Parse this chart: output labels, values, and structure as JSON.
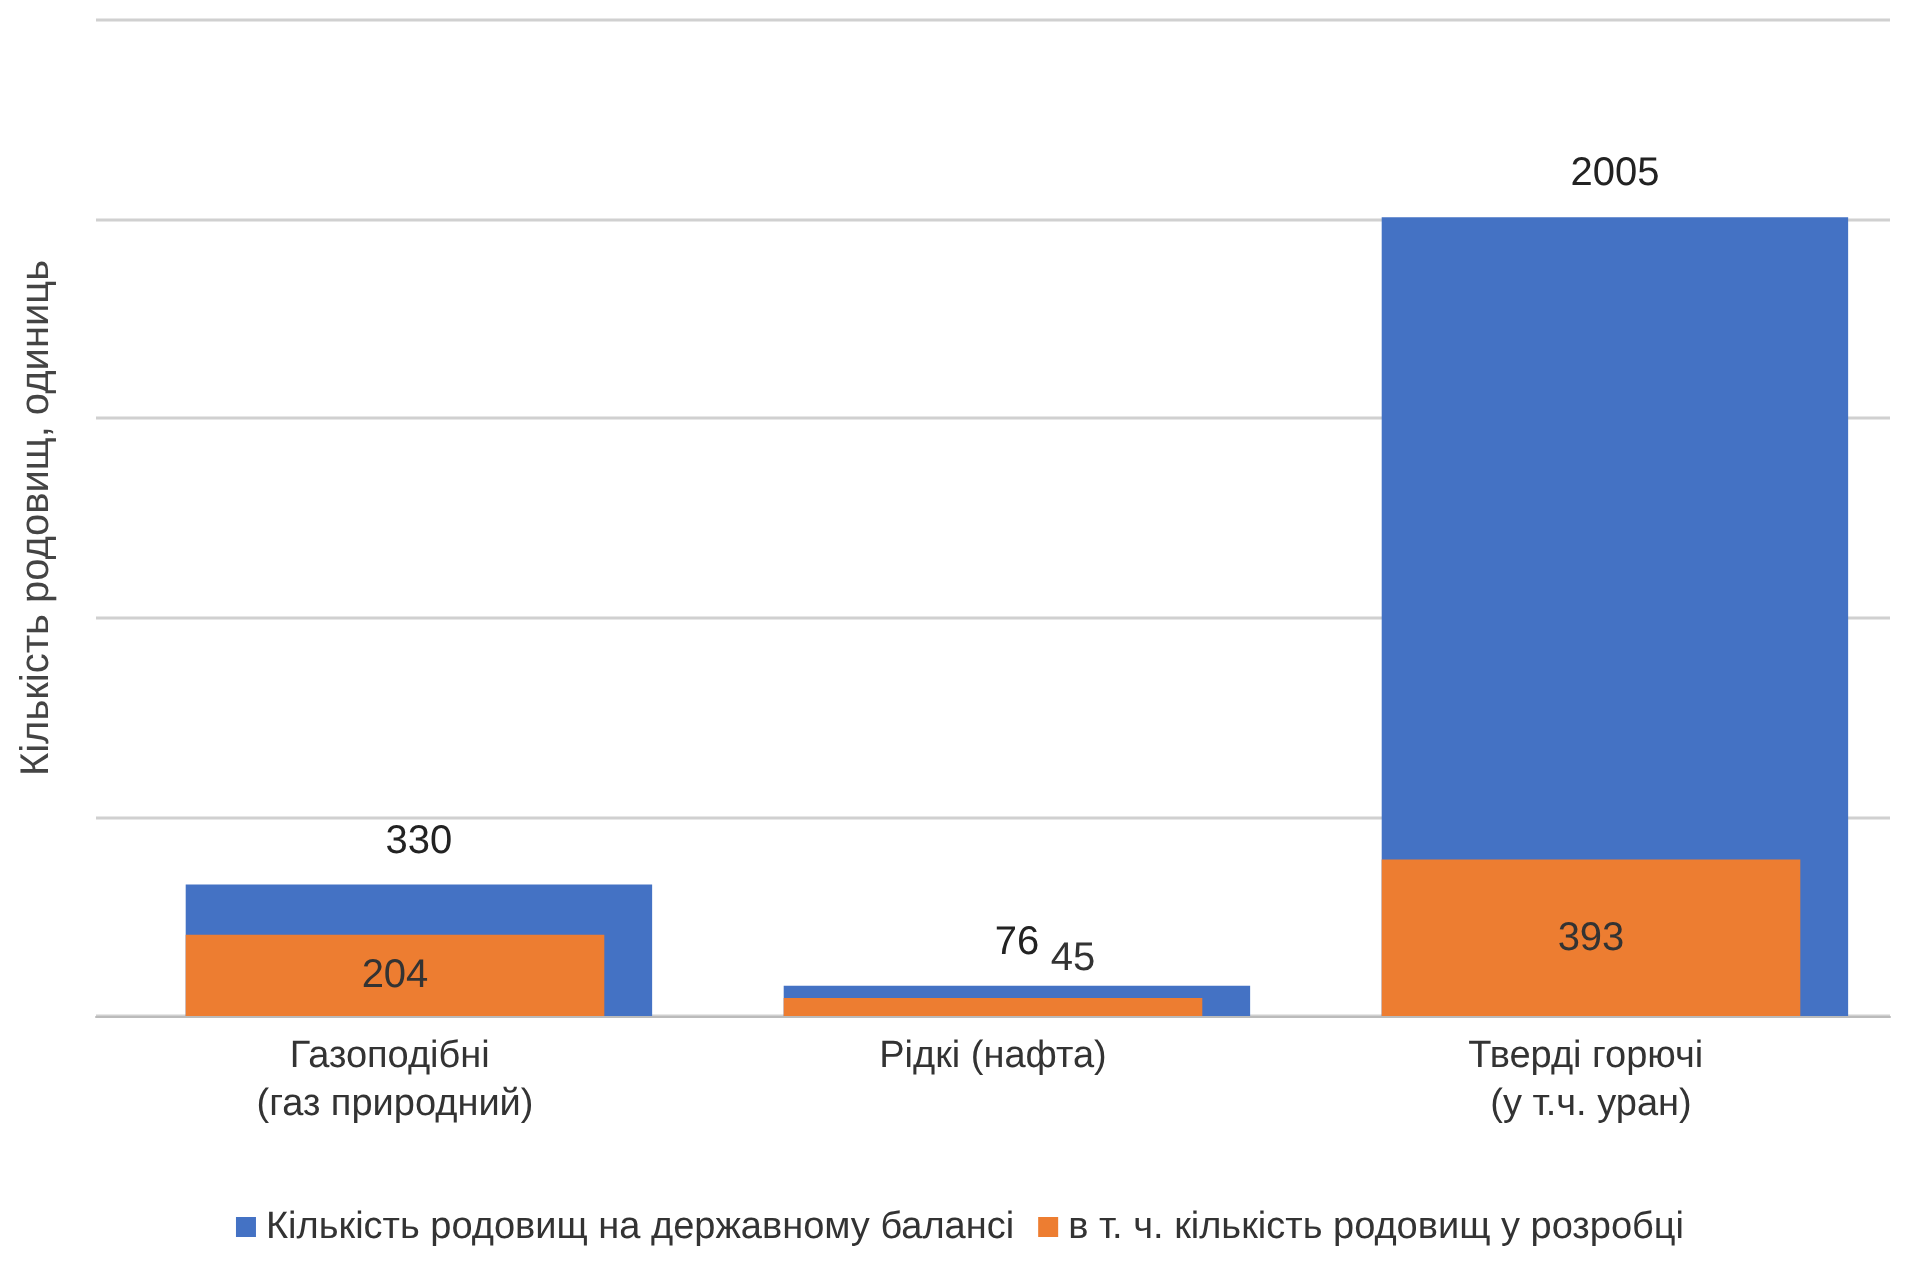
{
  "chart_data": {
    "type": "bar",
    "ylabel": "Кількість родовищ, одиниць",
    "categories": [
      "Газоподібні (газ природний)",
      "Рідкі (нафта)",
      "Тверді горючі (у т.ч. уран)"
    ],
    "series": [
      {
        "name": "Кількість родовищ на державному балансі",
        "color": "#4472c4",
        "values": [
          330,
          76,
          2005
        ]
      },
      {
        "name": "в т. ч. кількість родовищ у розробці",
        "color": "#ed7d31",
        "values": [
          204,
          45,
          393
        ]
      }
    ],
    "ylim": [
      0,
      2500
    ],
    "yticks": [
      0,
      500,
      1000,
      1500,
      2000,
      2500
    ],
    "tick_labels": "x",
    "grid": "y",
    "legend": "bottom",
    "data_labels": true
  }
}
